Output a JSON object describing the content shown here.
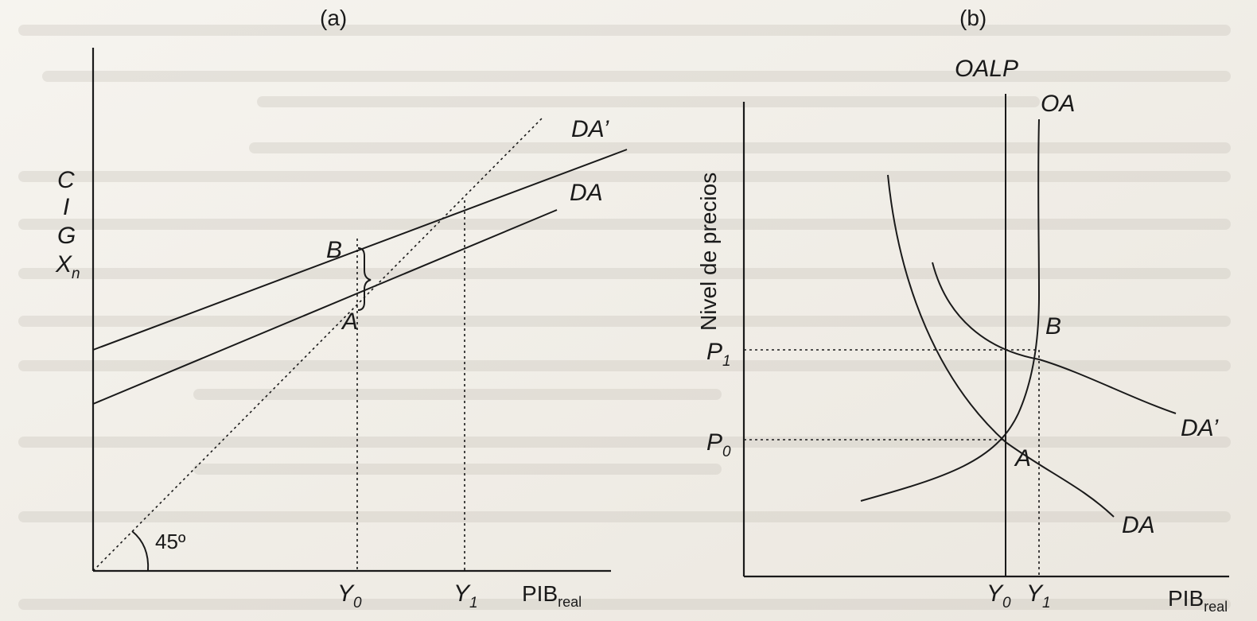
{
  "panels": [
    {
      "id": "a",
      "label": "(a)",
      "ylabel_lines": [
        "C",
        "I",
        "G",
        "X"
      ],
      "ylabel_sub": "n",
      "xlabel": "PIB",
      "xlabel_sub": "real",
      "angle_label": "45º",
      "curve_labels": [
        "DA",
        "DA’"
      ],
      "point_labels": [
        "A",
        "B"
      ],
      "tick_labels": [
        {
          "main": "Y",
          "sub": "0"
        },
        {
          "main": "Y",
          "sub": "1"
        }
      ]
    },
    {
      "id": "b",
      "label": "(b)",
      "ylabel": "Nivel de precios",
      "xlabel": "PIB",
      "xlabel_sub": "real",
      "curve_labels": [
        "OALP",
        "OA",
        "DA",
        "DA’"
      ],
      "point_labels": [
        "A",
        "B"
      ],
      "y_tick_labels": [
        {
          "main": "P",
          "sub": "1"
        },
        {
          "main": "P",
          "sub": "0"
        }
      ],
      "x_tick_labels": [
        {
          "main": "Y",
          "sub": "0"
        },
        {
          "main": "Y",
          "sub": "1"
        }
      ]
    }
  ],
  "chart_data": [
    {
      "type": "line",
      "title": "(a)",
      "xlabel": "PIB real",
      "ylabel": "C I G Xn",
      "series": [
        {
          "name": "45º",
          "points": [
            [
              0,
              0
            ],
            [
              50,
              50
            ],
            [
              69,
              69
            ]
          ]
        },
        {
          "name": "DA",
          "points": [
            [
              0,
              22
            ],
            [
              50,
              50
            ],
            [
              92,
              73
            ]
          ]
        },
        {
          "name": "DA’",
          "points": [
            [
              0,
              39
            ],
            [
              72,
              72
            ],
            [
              92,
              82
            ]
          ]
        }
      ],
      "x_ticks": [
        {
          "label": "Y0",
          "x": 50
        },
        {
          "label": "Y1",
          "x": 72
        }
      ],
      "points": [
        {
          "label": "A",
          "x": 50,
          "y": 50
        },
        {
          "label": "B",
          "x": 50,
          "y": 60
        }
      ],
      "xlim": [
        0,
        100
      ],
      "ylim": [
        0,
        100
      ]
    },
    {
      "type": "line",
      "title": "(b)",
      "xlabel": "PIB real",
      "ylabel": "Nivel de precios",
      "series": [
        {
          "name": "OALP",
          "points": [
            [
              50,
              0
            ],
            [
              50,
              100
            ]
          ]
        },
        {
          "name": "OA",
          "points": [
            [
              23,
              18
            ],
            [
              50,
              30
            ],
            [
              58,
              50
            ],
            [
              61,
              80
            ],
            [
              62,
              95
            ]
          ]
        },
        {
          "name": "DA",
          "points": [
            [
              30,
              88
            ],
            [
              37,
              58
            ],
            [
              50,
              30
            ],
            [
              67,
              18
            ],
            [
              69,
              13
            ]
          ]
        },
        {
          "name": "DA’",
          "points": [
            [
              39,
              74
            ],
            [
              50,
              52
            ],
            [
              58,
              45
            ],
            [
              82,
              36
            ],
            [
              89,
              33
            ]
          ]
        }
      ],
      "x_ticks": [
        {
          "label": "Y0",
          "x": 50
        },
        {
          "label": "Y1",
          "x": 58
        }
      ],
      "y_ticks": [
        {
          "label": "P1",
          "y": 45
        },
        {
          "label": "P0",
          "y": 30
        }
      ],
      "points": [
        {
          "label": "A",
          "x": 50,
          "y": 30
        },
        {
          "label": "B",
          "x": 58,
          "y": 45
        }
      ],
      "xlim": [
        0,
        100
      ],
      "ylim": [
        0,
        100
      ]
    }
  ]
}
